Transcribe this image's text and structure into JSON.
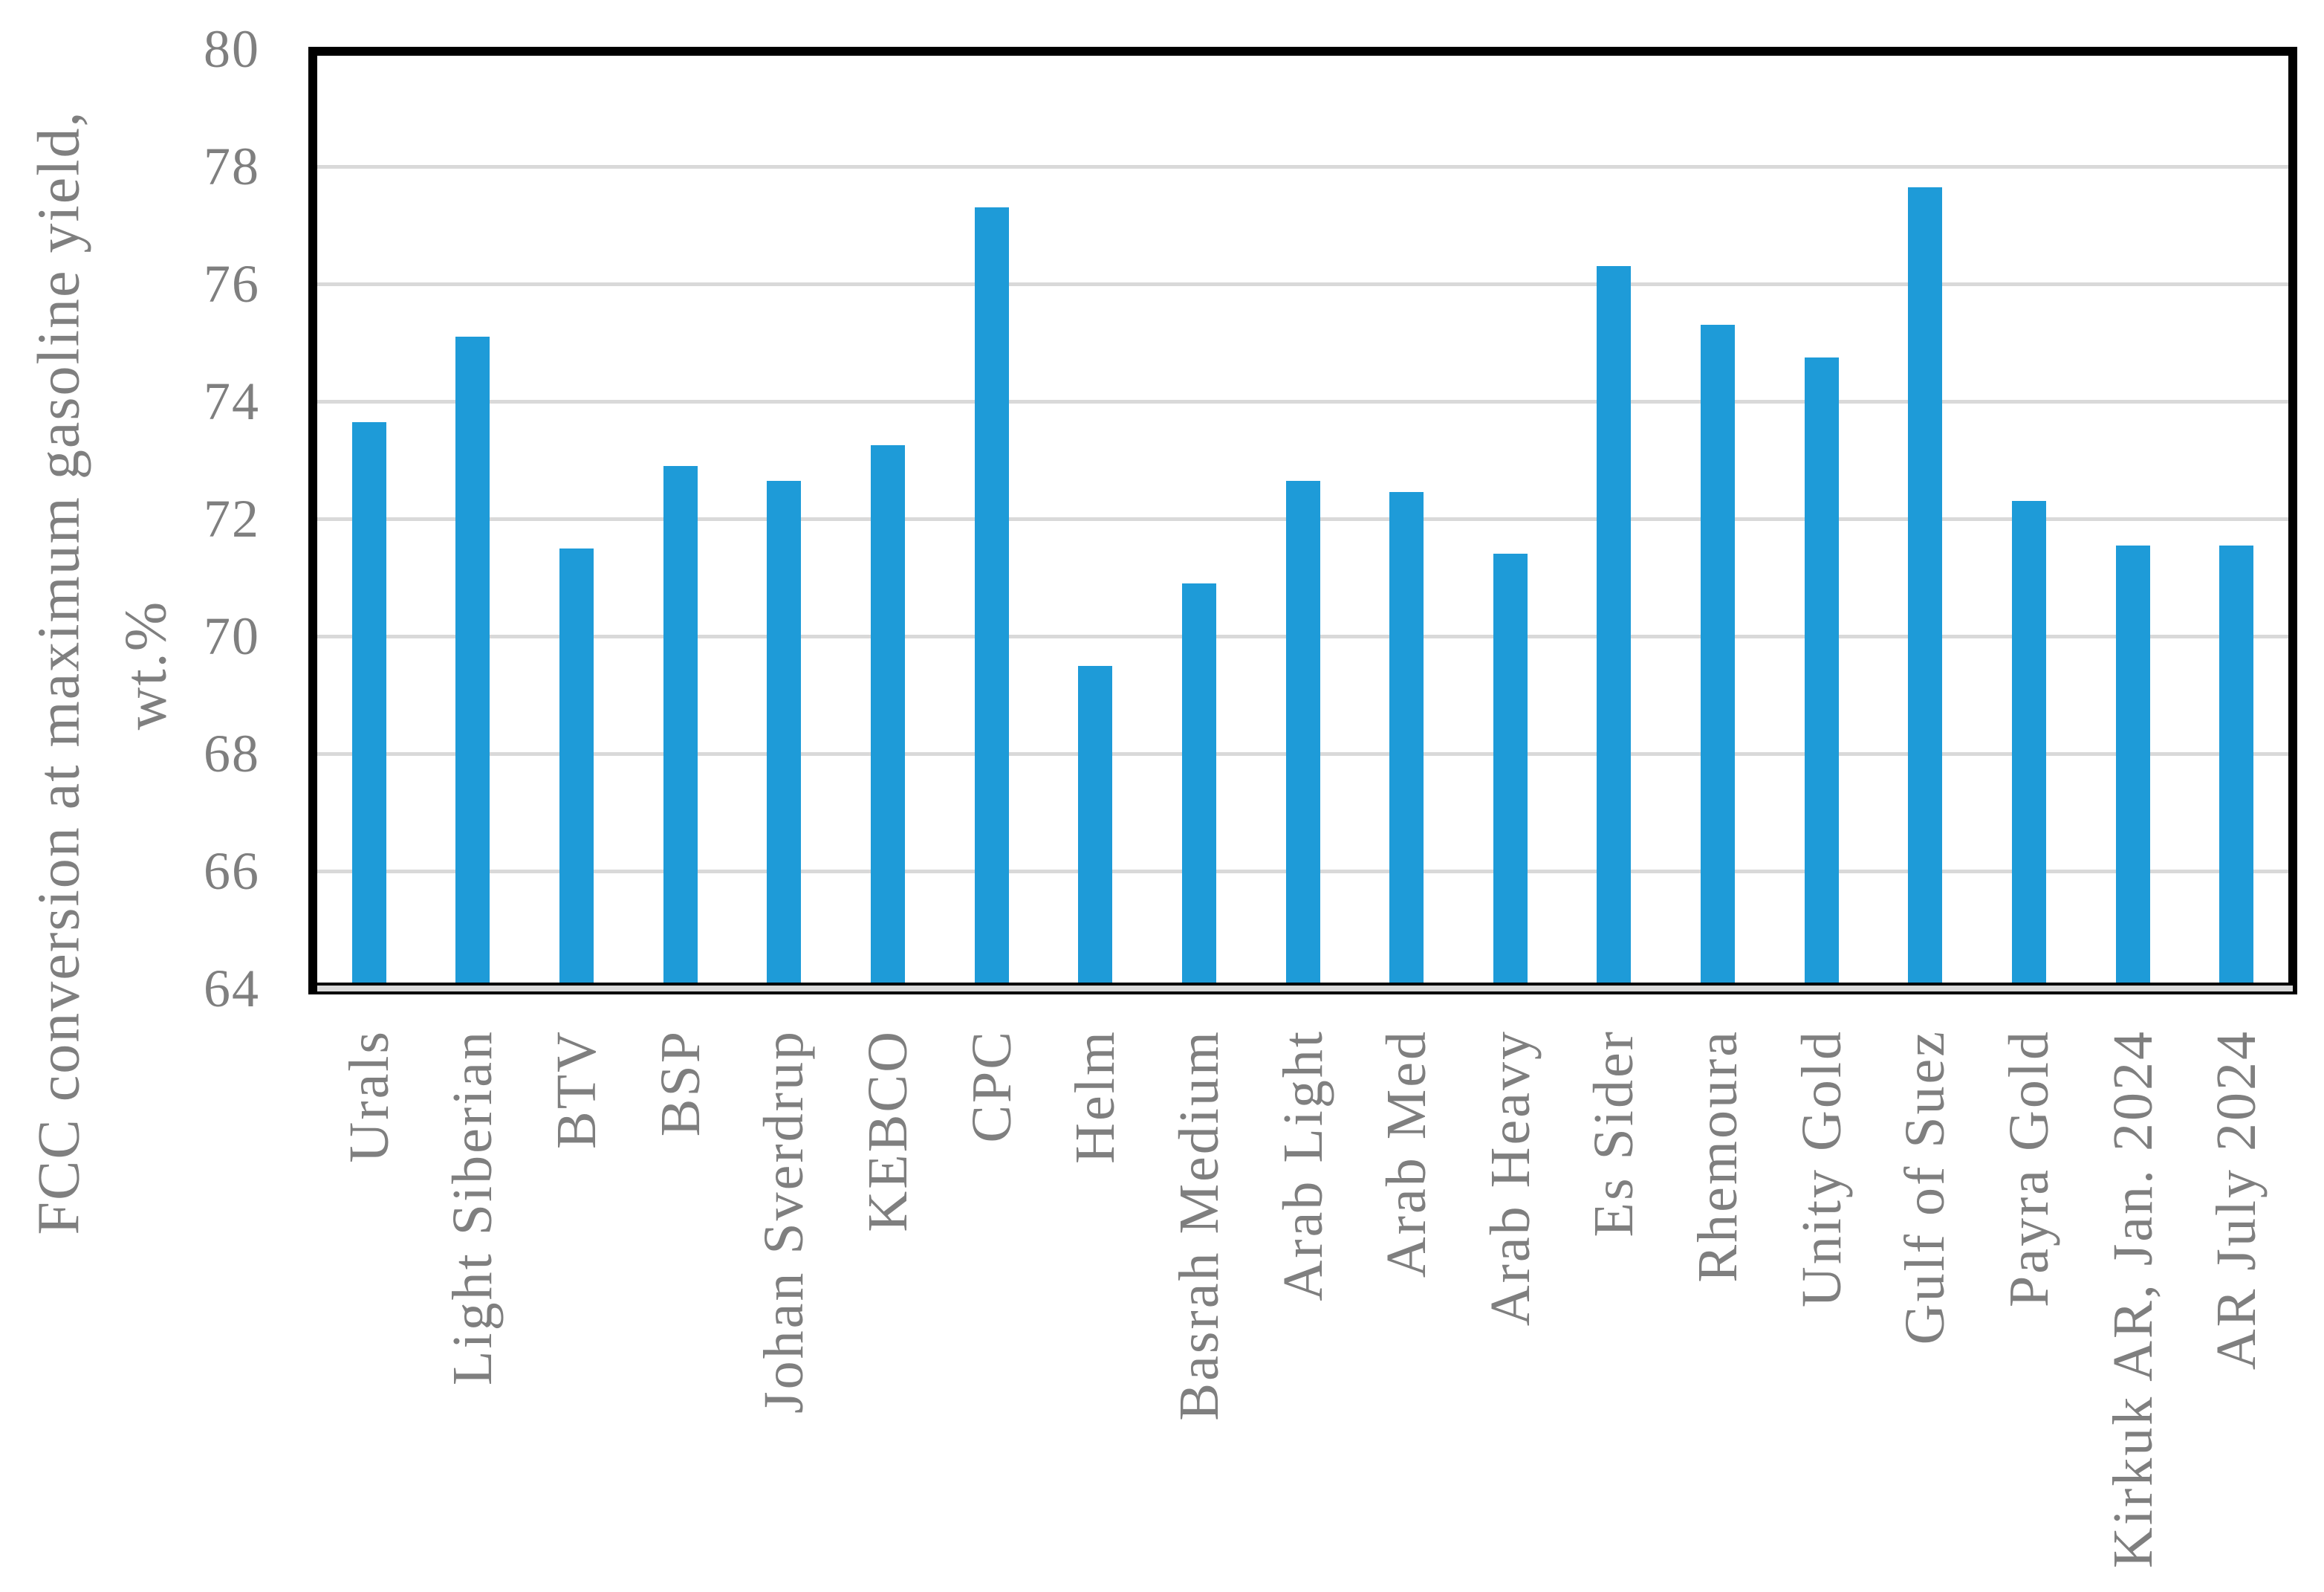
{
  "chart_data": {
    "type": "bar",
    "title": "",
    "ylabel_line1": "FCC conversion at maximum gasoline yield,",
    "ylabel_line2": "wt.%",
    "xlabel": "",
    "categories": [
      "Urals",
      "Light Siberian",
      "BTV",
      "BSP",
      "Johan Sverdrup",
      "KEBCO",
      "CPC",
      "Helm",
      "Basrah Medium",
      "Arab Light",
      "Arab Med",
      "Arab Heavy",
      "Es Sider",
      "Rhemoura",
      "Unity Gold",
      "Gulf of Suez",
      "Payra Gold",
      "Kirkuk AR, Jan. 2024",
      "AR July 2024"
    ],
    "values": [
      73.65,
      75.1,
      71.5,
      72.9,
      72.65,
      73.25,
      77.3,
      69.5,
      70.9,
      72.65,
      72.45,
      71.4,
      76.3,
      75.3,
      74.75,
      77.65,
      72.3,
      71.55,
      71.55
    ],
    "ylim": [
      64,
      80
    ],
    "yticks": [
      80,
      78,
      76,
      74,
      72,
      70,
      68,
      66,
      64
    ],
    "grid": "horizontal-only",
    "legend_position": "none",
    "bar_color": "#1E9BD8",
    "gridline_color": "#D9D9D9",
    "axis_text_color": "#7F7F7F",
    "plot_border_color": "#000000",
    "shadow_color": "#D9D9D9"
  }
}
